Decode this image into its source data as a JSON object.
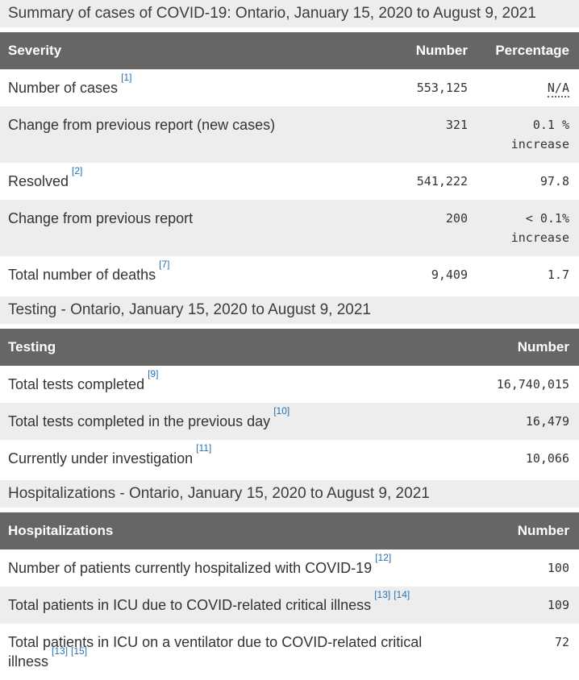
{
  "colors": {
    "header_bg": "#666666",
    "band_bg": "#ededed",
    "stripe_bg": "#ededed",
    "link": "#2572b4",
    "text": "#333333"
  },
  "summary": {
    "caption": "Summary of cases of COVID-19: Ontario, January 15, 2020 to August 9, 2021",
    "headers": {
      "severity": "Severity",
      "number": "Number",
      "percentage": "Percentage"
    },
    "rows": [
      {
        "label": "Number of cases",
        "refs": [
          "[1]"
        ],
        "number": "553,125",
        "percentage": "N/A"
      },
      {
        "label": "Change from previous report (new cases)",
        "refs": [],
        "number": "321",
        "percentage": "0.1 %",
        "note": "increase"
      },
      {
        "label": "Resolved",
        "refs": [
          "[2]"
        ],
        "number": "541,222",
        "percentage": "97.8"
      },
      {
        "label": "Change from previous report",
        "refs": [],
        "number": "200",
        "percentage": "< 0.1%",
        "note": "increase"
      },
      {
        "label": "Total number of deaths",
        "refs": [
          "[7]"
        ],
        "number": "9,409",
        "percentage": "1.7"
      }
    ]
  },
  "testing": {
    "caption": "Testing - Ontario, January 15, 2020 to August 9, 2021",
    "headers": {
      "testing": "Testing",
      "number": "Number"
    },
    "rows": [
      {
        "label": "Total tests completed",
        "refs": [
          "[9]"
        ],
        "number": "16,740,015"
      },
      {
        "label": "Total tests completed in the previous day",
        "refs": [
          "[10]"
        ],
        "number": "16,479"
      },
      {
        "label": "Currently under investigation",
        "refs": [
          "[11]"
        ],
        "number": "10,066"
      }
    ]
  },
  "hospitalizations": {
    "caption": "Hospitalizations - Ontario, January 15, 2020 to August 9, 2021",
    "headers": {
      "hospitalizations": "Hospitalizations",
      "number": "Number"
    },
    "rows": [
      {
        "label": "Number of patients currently hospitalized with COVID-19",
        "refs": [
          "[12]"
        ],
        "number": "100"
      },
      {
        "label": "Total patients in ICU due to COVID-related critical illness",
        "refs": [
          "[13]",
          "[14]"
        ],
        "number": "109"
      },
      {
        "label": "Total patients in ICU on a ventilator due to COVID-related critical illness",
        "refs": [
          "[13]",
          "[15]"
        ],
        "number": "72"
      }
    ]
  }
}
